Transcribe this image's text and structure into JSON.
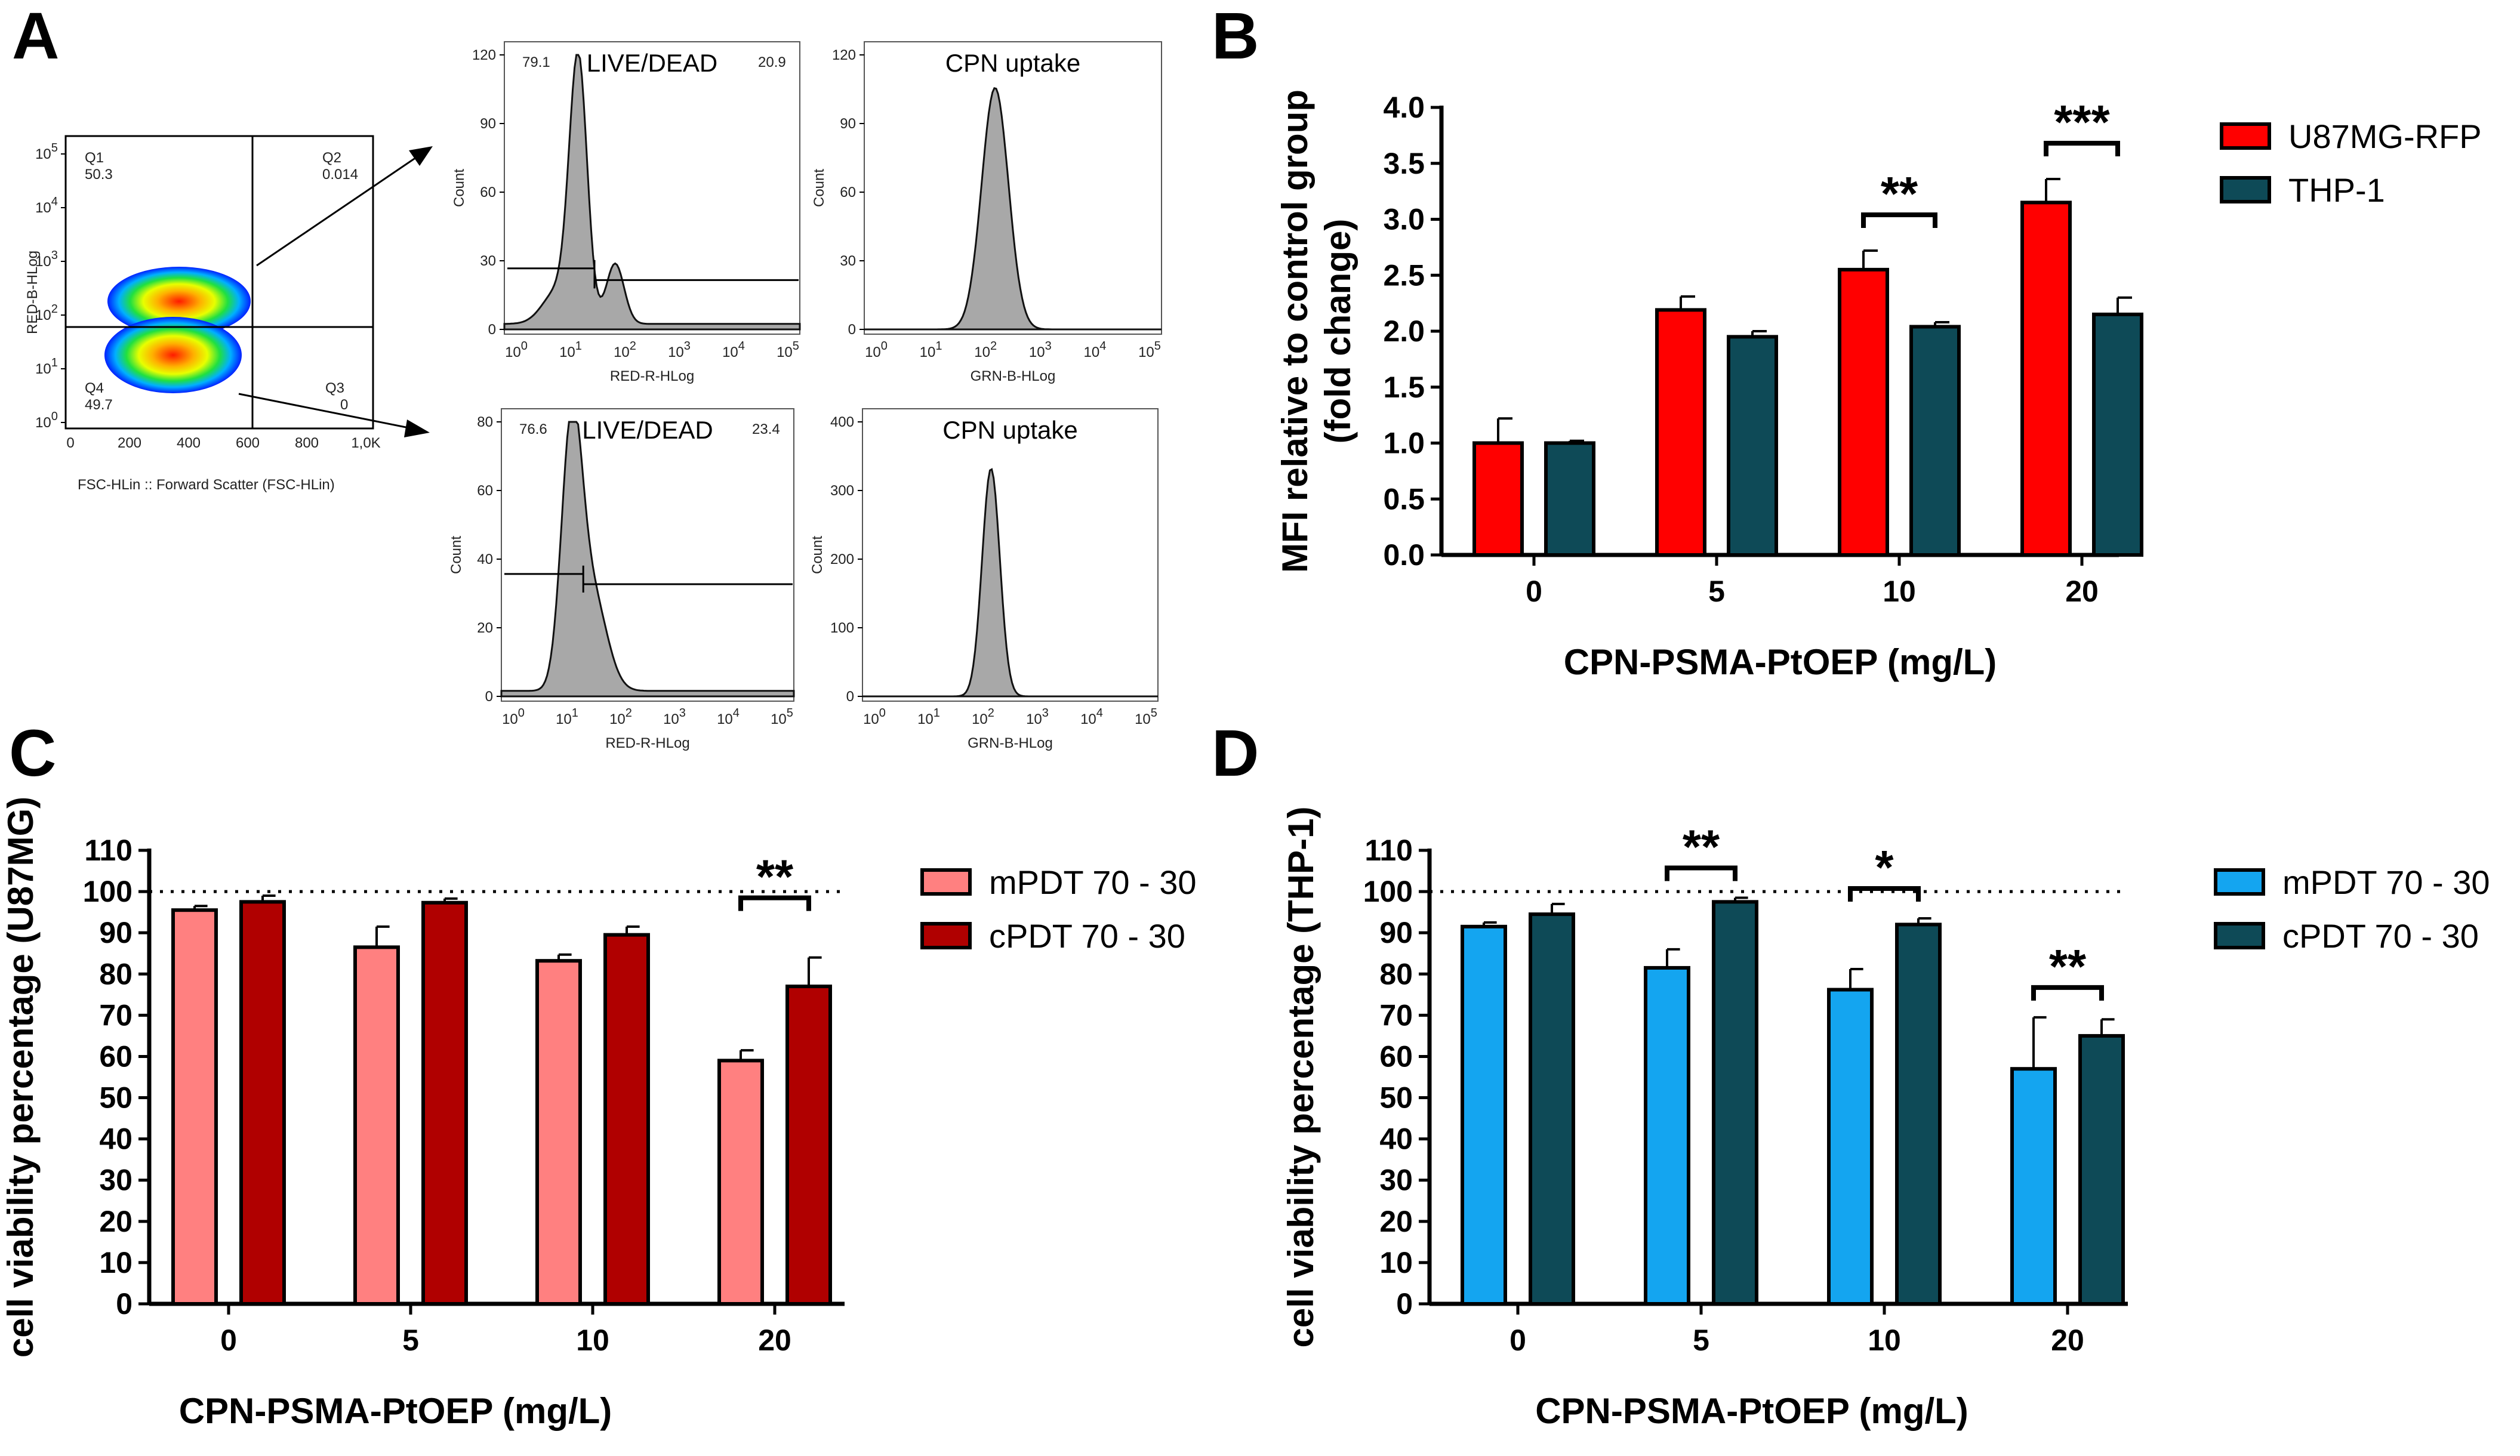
{
  "panel_labels": {
    "a": "A",
    "b": "B",
    "c": "C",
    "d": "D"
  },
  "colors": {
    "u87": "#ff0000",
    "thp": "#0e4a57",
    "mpdt_c": "#ff8080",
    "cpdt_c": "#b00000",
    "mpdt_d": "#14a5f0",
    "cpdt_d": "#0e4a57",
    "hist": "#a8a8a8"
  },
  "flow": {
    "dot_plot": {
      "q1": "Q1",
      "q1_val": "50.3",
      "q2": "Q2",
      "q2_val": "0.014",
      "q3": "Q3",
      "q3_val": "0",
      "q4": "Q4",
      "q4_val": "49.7",
      "ylabel": "RED-B-HLog",
      "xlabel": "FSC-HLin :: Forward Scatter (FSC-HLin)",
      "xticks": [
        "0",
        "200",
        "400",
        "600",
        "800",
        "1,0K"
      ],
      "ybase": "10",
      "yexp": [
        "0",
        "1",
        "2",
        "3",
        "4",
        "5"
      ]
    },
    "hist_ld_top": {
      "title": "LIVE/DEAD",
      "left_val": "79.1",
      "right_val": "20.9",
      "yticks": [
        "0",
        "30",
        "60",
        "90",
        "120"
      ],
      "ylabel": "Count",
      "xlabel": "RED-R-HLog",
      "xbase": "10",
      "xexp": [
        "0",
        "1",
        "2",
        "3",
        "4",
        "5"
      ]
    },
    "hist_cpn_top": {
      "title": "CPN uptake",
      "yticks": [
        "0",
        "30",
        "60",
        "90",
        "120"
      ],
      "ylabel": "Count",
      "xlabel": "GRN-B-HLog",
      "xbase": "10",
      "xexp": [
        "0",
        "1",
        "2",
        "3",
        "4",
        "5"
      ]
    },
    "hist_ld_bottom": {
      "title": "LIVE/DEAD",
      "left_val": "76.6",
      "right_val": "23.4",
      "yticks": [
        "0",
        "20",
        "40",
        "60",
        "80"
      ],
      "ylabel": "Count",
      "xlabel": "RED-R-HLog",
      "xbase": "10",
      "xexp": [
        "0",
        "1",
        "2",
        "3",
        "4",
        "5"
      ]
    },
    "hist_cpn_bottom": {
      "title": "CPN uptake",
      "yticks": [
        "0",
        "100",
        "200",
        "300",
        "400"
      ],
      "ylabel": "Count",
      "xlabel": "GRN-B-HLog",
      "xbase": "10",
      "xexp": [
        "0",
        "1",
        "2",
        "3",
        "4",
        "5"
      ]
    }
  },
  "chart_data": [
    {
      "id": "B",
      "type": "bar",
      "categories": [
        "0",
        "5",
        "10",
        "20"
      ],
      "series": [
        {
          "name": "U87MG-RFP",
          "values": [
            1.0,
            2.19,
            2.55,
            3.15
          ],
          "errors": [
            0.22,
            0.12,
            0.17,
            0.21
          ]
        },
        {
          "name": "THP-1",
          "values": [
            1.0,
            1.95,
            2.04,
            2.15
          ],
          "errors": [
            0.02,
            0.05,
            0.04,
            0.15
          ]
        }
      ],
      "xlabel": "CPN-PSMA-PtOEP (mg/L)",
      "ylabel": [
        "MFI relative to control group",
        "(fold change)"
      ],
      "ylim": [
        0,
        4
      ],
      "yticks": [
        "0.0",
        "0.5",
        "1.0",
        "1.5",
        "2.0",
        "2.5",
        "3.0",
        "3.5",
        "4.0"
      ],
      "significance": [
        {
          "category": 2,
          "label": "**"
        },
        {
          "category": 3,
          "label": "***"
        }
      ],
      "legend_position": "right"
    },
    {
      "id": "C",
      "type": "bar",
      "categories": [
        "0",
        "5",
        "10",
        "20"
      ],
      "series": [
        {
          "name": "mPDT 70 - 30",
          "values": [
            95.5,
            86.5,
            83.2,
            59.0
          ],
          "errors": [
            1.0,
            5.0,
            1.5,
            2.5
          ]
        },
        {
          "name": "cPDT 70 - 30",
          "values": [
            97.5,
            97.3,
            89.5,
            77.0
          ],
          "errors": [
            1.5,
            1.0,
            2.0,
            7.0
          ]
        }
      ],
      "xlabel": "CPN-PSMA-PtOEP (mg/L)",
      "ylabel": [
        "cell viability percentage (U87MG)"
      ],
      "ylim": [
        0,
        110
      ],
      "yticks": [
        "0",
        "10",
        "20",
        "30",
        "40",
        "50",
        "60",
        "70",
        "80",
        "90",
        "100",
        "110"
      ],
      "reference_line": 100,
      "significance": [
        {
          "category": 3,
          "label": "**"
        }
      ],
      "legend_position": "right"
    },
    {
      "id": "D",
      "type": "bar",
      "categories": [
        "0",
        "5",
        "10",
        "20"
      ],
      "series": [
        {
          "name": "mPDT 70 - 30",
          "values": [
            91.5,
            81.5,
            76.2,
            57.0
          ],
          "errors": [
            1.0,
            4.5,
            5.0,
            12.5
          ]
        },
        {
          "name": "cPDT 70 - 30",
          "values": [
            94.5,
            97.5,
            92.0,
            65.0
          ],
          "errors": [
            2.5,
            1.0,
            1.5,
            4.0
          ]
        }
      ],
      "xlabel": "CPN-PSMA-PtOEP (mg/L)",
      "ylabel": [
        "cell viability percentage (THP-1)"
      ],
      "ylim": [
        0,
        110
      ],
      "yticks": [
        "0",
        "10",
        "20",
        "30",
        "40",
        "50",
        "60",
        "70",
        "80",
        "90",
        "100",
        "110"
      ],
      "reference_line": 100,
      "significance": [
        {
          "category": 1,
          "label": "**"
        },
        {
          "category": 2,
          "label": "*"
        },
        {
          "category": 3,
          "label": "**"
        }
      ],
      "legend_position": "right"
    }
  ]
}
